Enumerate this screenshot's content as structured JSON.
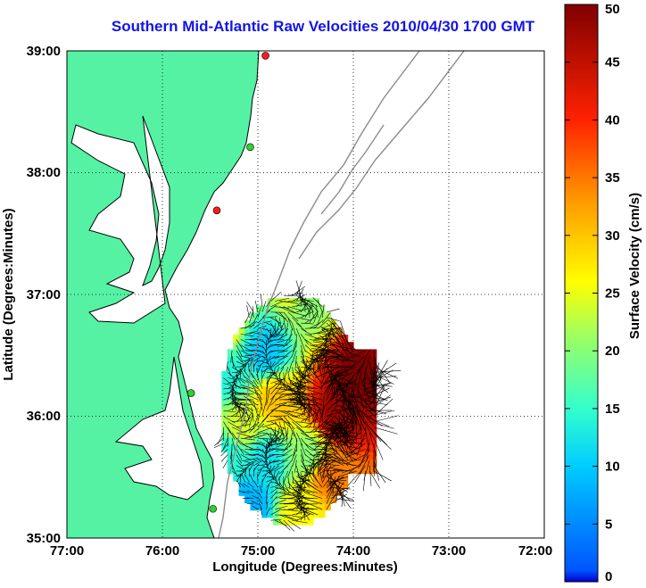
{
  "chart_data": {
    "type": "heatmap",
    "title": "Southern Mid-Atlantic Raw Velocities 2010/04/30 1700 GMT",
    "xlabel": "Longitude (Degrees:Minutes)",
    "ylabel": "Latitude (Degrees:Minutes)",
    "x_ticks": [
      "77:00",
      "76:00",
      "75:00",
      "74:00",
      "73:00",
      "72:00"
    ],
    "y_ticks": [
      "39:00",
      "38:00",
      "37:00",
      "36:00",
      "35:00"
    ],
    "xlim": [
      -77,
      -72
    ],
    "ylim": [
      35,
      39
    ],
    "grid": true,
    "colorbar": {
      "label": "Surface Velocity (cm/s)",
      "range": [
        0,
        50
      ],
      "ticks": [
        "0",
        "5",
        "10",
        "15",
        "20",
        "25",
        "30",
        "35",
        "40",
        "45",
        "50"
      ],
      "colormap": "jet"
    },
    "colors": {
      "land": "#55f2a4",
      "title": "#1414e6",
      "coastline": "#000000",
      "bathymetry": "#8c8c8c"
    },
    "stations": [
      {
        "lon": -74.92,
        "lat": 38.96,
        "color": "#ff1a1a"
      },
      {
        "lon": -75.08,
        "lat": 38.21,
        "color": "#2fd02f"
      },
      {
        "lon": -75.43,
        "lat": 37.69,
        "color": "#ff1a1a"
      },
      {
        "lon": -75.7,
        "lat": 36.19,
        "color": "#2fd02f"
      },
      {
        "lon": -75.47,
        "lat": 35.24,
        "color": "#2fd02f"
      }
    ],
    "velocity_field": [
      {
        "lon": -74.55,
        "lat": 37.05,
        "speed": 28
      },
      {
        "lon": -74.5,
        "lat": 36.9,
        "speed": 20
      },
      {
        "lon": -74.95,
        "lat": 36.5,
        "speed": 10
      },
      {
        "lon": -75.45,
        "lat": 36.75,
        "speed": 32
      },
      {
        "lon": -75.35,
        "lat": 36.3,
        "speed": 14
      },
      {
        "lon": -74.85,
        "lat": 36.1,
        "speed": 30
      },
      {
        "lon": -74.2,
        "lat": 36.0,
        "speed": 48
      },
      {
        "lon": -74.0,
        "lat": 36.3,
        "speed": 50
      },
      {
        "lon": -74.5,
        "lat": 35.65,
        "speed": 20
      },
      {
        "lon": -74.95,
        "lat": 35.6,
        "speed": 12
      },
      {
        "lon": -75.35,
        "lat": 35.65,
        "speed": 14
      },
      {
        "lon": -74.3,
        "lat": 35.5,
        "speed": 35
      },
      {
        "lon": -74.6,
        "lat": 35.2,
        "speed": 26
      },
      {
        "lon": -75.1,
        "lat": 35.25,
        "speed": 8
      },
      {
        "lon": -75.2,
        "lat": 35.9,
        "speed": 24
      }
    ]
  }
}
